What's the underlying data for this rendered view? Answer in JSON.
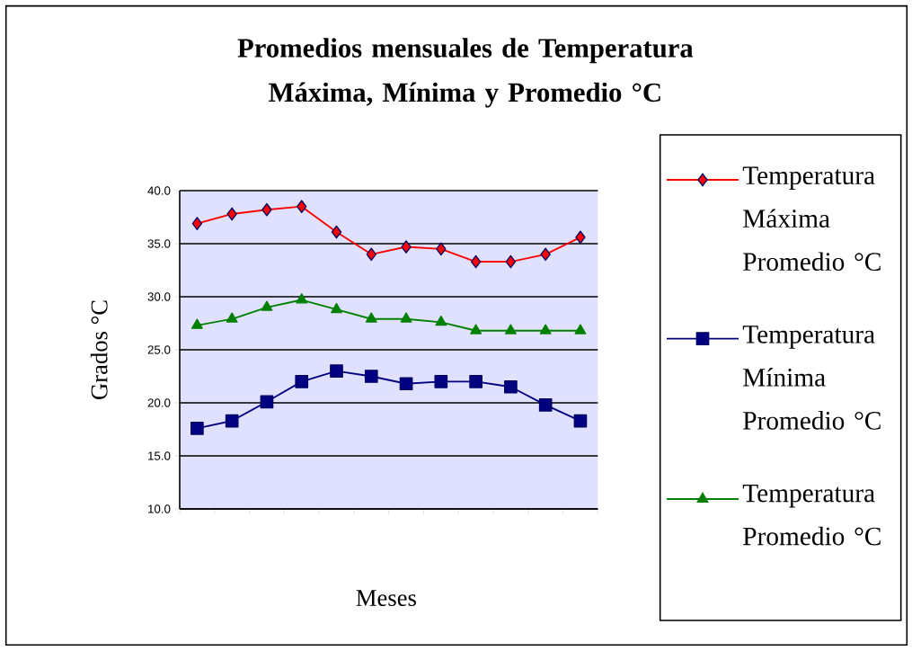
{
  "chart_data": {
    "type": "line",
    "title": "Promedios mensuales de Temperatura Máxima, Mínima y Promedio °C",
    "xlabel": "Meses",
    "ylabel": "Grados °C",
    "categories": [
      null,
      null,
      null,
      null,
      null,
      null,
      null,
      null,
      null,
      null,
      null,
      null
    ],
    "series": [
      {
        "name": "Temperatura Máxima Promedio °C",
        "color": "#ff0000",
        "marker": "diamond",
        "values": [
          36.9,
          37.8,
          38.2,
          38.5,
          36.1,
          34.0,
          34.7,
          34.5,
          33.3,
          33.3,
          34.0,
          35.6
        ]
      },
      {
        "name": "Temperatura Mínima Promedio °C",
        "color": "#000080",
        "marker": "square",
        "values": [
          17.6,
          18.3,
          20.1,
          22.0,
          23.0,
          22.5,
          21.8,
          22.0,
          22.0,
          21.5,
          19.8,
          18.3
        ]
      },
      {
        "name": "Temperatura Promedio °C",
        "color": "#008000",
        "marker": "triangle",
        "values": [
          27.3,
          27.9,
          29.0,
          29.7,
          28.8,
          27.9,
          27.9,
          27.6,
          26.8,
          26.8,
          26.8,
          26.8
        ]
      }
    ],
    "ylim": [
      10,
      40
    ],
    "yticks": [
      {
        "value": 10,
        "label": "10.0"
      },
      {
        "value": 15,
        "label": "15.0"
      },
      {
        "value": 20,
        "label": "20.0"
      },
      {
        "value": 25,
        "label": "25.0"
      },
      {
        "value": 30,
        "label": "30.0"
      },
      {
        "value": 35,
        "label": "35.0"
      },
      {
        "value": 40,
        "label": "40.0"
      }
    ],
    "grid": "y",
    "legend": "right"
  }
}
